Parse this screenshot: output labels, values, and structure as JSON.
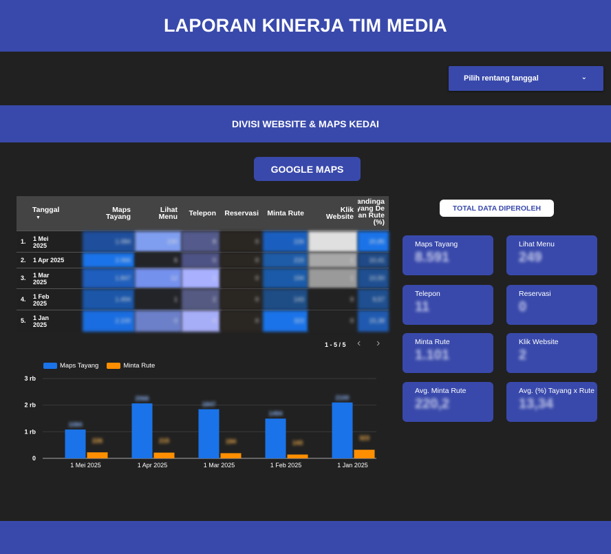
{
  "header": {
    "title": "LAPORAN KINERJA TIM MEDIA"
  },
  "date_range": {
    "label": "Pilih rentang tanggal",
    "icon": "chevron-down-icon"
  },
  "section": {
    "title": "DIVISI WEBSITE & MAPS KEDAI"
  },
  "tab_button": {
    "label": "GOOGLE MAPS"
  },
  "table": {
    "columns": [
      "Tanggal",
      "Maps Tayang",
      "Lihat Menu",
      "Telepon",
      "Reservasi",
      "Minta Rute",
      "Klik Website",
      "Perbandingan Tayang Dengan Rute (%)"
    ],
    "sort_icon": "sort-down-icon",
    "rows": [
      {
        "num": "1.",
        "date": "1 Mei 2025",
        "values": [
          "1.084",
          "230",
          "8",
          "0",
          "226",
          "0",
          "20,85"
        ]
      },
      {
        "num": "2.",
        "date": "1 Apr 2025",
        "values": [
          "2.066",
          "6",
          "0",
          "0",
          "215",
          "1",
          "10,41"
        ]
      },
      {
        "num": "3.",
        "date": "1 Mar 2025",
        "values": [
          "1.847",
          "12",
          "1",
          "0",
          "194",
          "1",
          "10,50"
        ]
      },
      {
        "num": "4.",
        "date": "1 Feb 2025",
        "values": [
          "1.494",
          "1",
          "2",
          "0",
          "143",
          "0",
          "9,57"
        ]
      },
      {
        "num": "5.",
        "date": "1 Jan 2025",
        "values": [
          "2.100",
          "0",
          "0",
          "0",
          "323",
          "0",
          "15,38"
        ]
      }
    ],
    "pager": "1 - 5 / 5"
  },
  "chart_data": {
    "type": "bar",
    "categories": [
      "1 Mei 2025",
      "1 Apr 2025",
      "1 Mar 2025",
      "1 Feb 2025",
      "1 Jan 2025"
    ],
    "series": [
      {
        "name": "Maps Tayang",
        "values": [
          1084,
          2066,
          1847,
          1494,
          2100
        ],
        "color": "#1a73e8"
      },
      {
        "name": "Minta Rute",
        "values": [
          226,
          215,
          194,
          143,
          323
        ],
        "color": "#ff8f00"
      }
    ],
    "yticks": [
      "0",
      "1 rb",
      "2 rb",
      "3 rb"
    ],
    "ylim": [
      0,
      3000
    ],
    "legend": "top-left",
    "grid": true
  },
  "summary": {
    "title": "TOTAL DATA DIPEROLEH",
    "cards": [
      {
        "label": "Maps Tayang",
        "value": "8.591"
      },
      {
        "label": "Lihat Menu",
        "value": "249"
      },
      {
        "label": "Telepon",
        "value": "11"
      },
      {
        "label": "Reservasi",
        "value": "0"
      },
      {
        "label": "Minta Rute",
        "value": "1.101"
      },
      {
        "label": "Klik Website",
        "value": "2"
      },
      {
        "label": "Avg. Minta Rute",
        "value": "220,2"
      },
      {
        "label": "Avg. (%) Tayang x Rute",
        "value": "13,34"
      }
    ]
  },
  "colors": {
    "accent": "#3949ab",
    "background": "#212121",
    "bar_primary": "#1a73e8",
    "bar_secondary": "#ff8f00"
  }
}
